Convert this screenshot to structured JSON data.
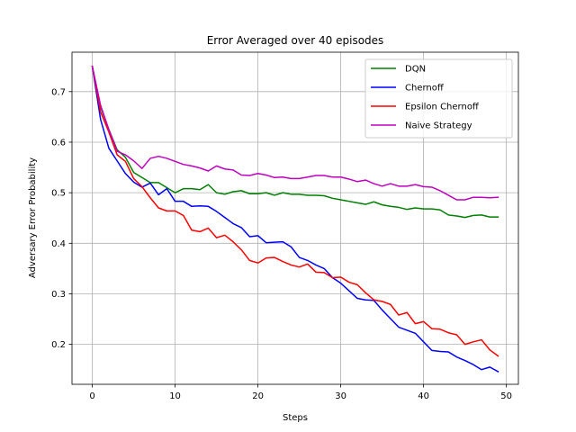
{
  "chart_data": {
    "type": "line",
    "title": "Error Averaged over 40 episodes",
    "xlabel": "Steps",
    "ylabel": "Adversary Error Probability",
    "xlim": [
      -2.45,
      51.45
    ],
    "ylim": [
      0.121,
      0.778
    ],
    "xticks": [
      0,
      10,
      20,
      30,
      40,
      50
    ],
    "yticks": [
      0.2,
      0.3,
      0.4,
      0.5,
      0.6,
      0.7
    ],
    "xtick_labels": [
      "0",
      "10",
      "20",
      "30",
      "40",
      "50"
    ],
    "ytick_labels": [
      "0.2",
      "0.3",
      "0.4",
      "0.5",
      "0.6",
      "0.7"
    ],
    "grid": true,
    "legend_position": "top-right",
    "x": [
      0,
      1,
      2,
      3,
      4,
      5,
      6,
      7,
      8,
      9,
      10,
      11,
      12,
      13,
      14,
      15,
      16,
      17,
      18,
      19,
      20,
      21,
      22,
      23,
      24,
      25,
      26,
      27,
      28,
      29,
      30,
      31,
      32,
      33,
      34,
      35,
      36,
      37,
      38,
      39,
      40,
      41,
      42,
      43,
      44,
      45,
      46,
      47,
      48,
      49
    ],
    "series": [
      {
        "name": "DQN",
        "color": "#008000",
        "values": [
          0.75,
          0.67,
          0.625,
          0.585,
          0.57,
          0.54,
          0.53,
          0.52,
          0.52,
          0.51,
          0.5,
          0.508,
          0.508,
          0.506,
          0.516,
          0.5,
          0.497,
          0.502,
          0.504,
          0.498,
          0.498,
          0.5,
          0.495,
          0.5,
          0.497,
          0.497,
          0.495,
          0.495,
          0.494,
          0.489,
          0.486,
          0.483,
          0.48,
          0.477,
          0.482,
          0.476,
          0.473,
          0.471,
          0.467,
          0.47,
          0.468,
          0.468,
          0.466,
          0.456,
          0.454,
          0.451,
          0.455,
          0.456,
          0.452,
          0.452
        ]
      },
      {
        "name": "Chernoff",
        "color": "#0000ff",
        "values": [
          0.75,
          0.645,
          0.588,
          0.563,
          0.538,
          0.521,
          0.511,
          0.519,
          0.496,
          0.508,
          0.483,
          0.483,
          0.473,
          0.474,
          0.473,
          0.463,
          0.451,
          0.439,
          0.431,
          0.413,
          0.415,
          0.401,
          0.402,
          0.403,
          0.393,
          0.372,
          0.366,
          0.357,
          0.35,
          0.332,
          0.321,
          0.306,
          0.291,
          0.288,
          0.287,
          0.268,
          0.251,
          0.234,
          0.228,
          0.222,
          0.205,
          0.188,
          0.186,
          0.185,
          0.175,
          0.168,
          0.16,
          0.15,
          0.155,
          0.146
        ]
      },
      {
        "name": "Epsilon Chernoff",
        "color": "#ff0000",
        "values": [
          0.75,
          0.66,
          0.62,
          0.575,
          0.562,
          0.528,
          0.512,
          0.49,
          0.47,
          0.464,
          0.464,
          0.455,
          0.426,
          0.423,
          0.43,
          0.411,
          0.416,
          0.403,
          0.387,
          0.366,
          0.361,
          0.371,
          0.372,
          0.364,
          0.357,
          0.353,
          0.359,
          0.343,
          0.342,
          0.332,
          0.333,
          0.323,
          0.318,
          0.302,
          0.288,
          0.285,
          0.279,
          0.258,
          0.263,
          0.241,
          0.245,
          0.231,
          0.23,
          0.223,
          0.219,
          0.2,
          0.205,
          0.209,
          0.189,
          0.177
        ]
      },
      {
        "name": "Naive Strategy",
        "color": "#bf00bf",
        "values": [
          0.75,
          0.673,
          0.625,
          0.582,
          0.575,
          0.563,
          0.548,
          0.568,
          0.572,
          0.568,
          0.562,
          0.556,
          0.553,
          0.549,
          0.543,
          0.553,
          0.547,
          0.545,
          0.535,
          0.534,
          0.538,
          0.535,
          0.53,
          0.531,
          0.528,
          0.528,
          0.531,
          0.534,
          0.534,
          0.531,
          0.531,
          0.527,
          0.522,
          0.525,
          0.518,
          0.513,
          0.518,
          0.513,
          0.513,
          0.516,
          0.512,
          0.511,
          0.504,
          0.495,
          0.486,
          0.486,
          0.491,
          0.491,
          0.49,
          0.491
        ]
      }
    ]
  }
}
